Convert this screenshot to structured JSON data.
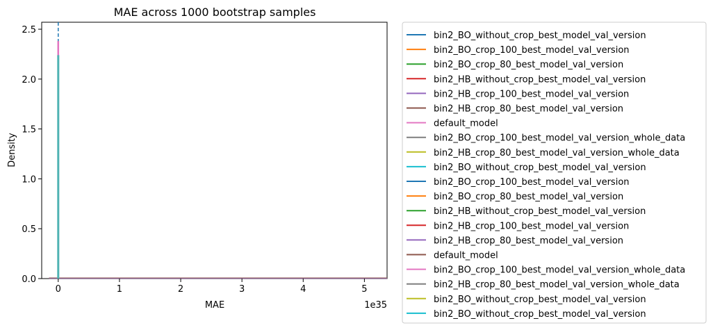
{
  "chart_data": {
    "type": "line",
    "title": "MAE across 1000 bootstrap samples",
    "xlabel": "MAE",
    "ylabel": "Density",
    "x_offset_text": "1e35",
    "xlim": [
      -0.27,
      5.37
    ],
    "ylim": [
      0.0,
      2.57
    ],
    "x_ticks": [
      0,
      1,
      2,
      3,
      4,
      5
    ],
    "x_tick_labels": [
      "0",
      "1",
      "2",
      "3",
      "4",
      "5"
    ],
    "y_ticks": [
      0.0,
      0.5,
      1.0,
      1.5,
      2.0,
      2.5
    ],
    "y_tick_labels": [
      "0.0",
      "0.5",
      "1.0",
      "1.5",
      "2.0",
      "2.5"
    ],
    "grid": false,
    "legend_position": "outside right",
    "near_zero_spike_heights": {
      "dashed_line": 2.57,
      "default_model": 2.38,
      "bin2_BO_without_crop_best_model_val_version": 2.24
    },
    "baseline_x_range": [
      -0.15,
      5.37
    ],
    "series": [
      {
        "name": "bin2_BO_without_crop_best_model_val_version",
        "color": "#1f77b4"
      },
      {
        "name": "bin2_BO_crop_100_best_model_val_version",
        "color": "#ff7f0e"
      },
      {
        "name": "bin2_BO_crop_80_best_model_val_version",
        "color": "#2ca02c"
      },
      {
        "name": "bin2_HB_without_crop_best_model_val_version",
        "color": "#d62728"
      },
      {
        "name": "bin2_HB_crop_100_best_model_val_version",
        "color": "#9467bd"
      },
      {
        "name": "bin2_HB_crop_80_best_model_val_version",
        "color": "#8c564b"
      },
      {
        "name": "default_model",
        "color": "#e377c2"
      },
      {
        "name": "bin2_BO_crop_100_best_model_val_version_whole_data",
        "color": "#7f7f7f"
      },
      {
        "name": "bin2_HB_crop_80_best_model_val_version_whole_data",
        "color": "#bcbd22"
      },
      {
        "name": "bin2_BO_without_crop_best_model_val_version",
        "color": "#17becf"
      },
      {
        "name": "bin2_BO_crop_100_best_model_val_version",
        "color": "#1f77b4"
      },
      {
        "name": "bin2_BO_crop_80_best_model_val_version",
        "color": "#ff7f0e"
      },
      {
        "name": "bin2_HB_without_crop_best_model_val_version",
        "color": "#2ca02c"
      },
      {
        "name": "bin2_HB_crop_100_best_model_val_version",
        "color": "#d62728"
      },
      {
        "name": "bin2_HB_crop_80_best_model_val_version",
        "color": "#9467bd"
      },
      {
        "name": "default_model",
        "color": "#8c564b"
      },
      {
        "name": "bin2_BO_crop_100_best_model_val_version_whole_data",
        "color": "#e377c2"
      },
      {
        "name": "bin2_HB_crop_80_best_model_val_version_whole_data",
        "color": "#7f7f7f"
      },
      {
        "name": "bin2_BO_without_crop_best_model_val_version",
        "color": "#bcbd22"
      },
      {
        "name": "bin2_BO_without_crop_best_model_val_version",
        "color": "#17becf"
      }
    ]
  }
}
